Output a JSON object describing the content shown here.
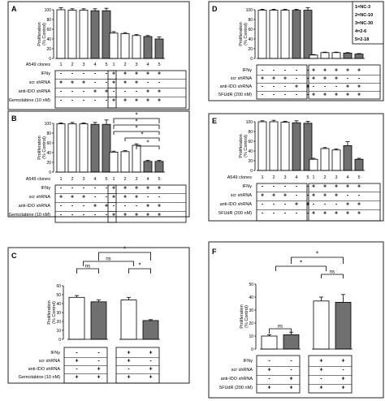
{
  "legend_box": [
    "1=NC-3",
    "2=NC-10",
    "3=NC-30",
    "4=2-6",
    "5=2-18"
  ],
  "y_axis_label": [
    "Proliferation",
    "(% Control)"
  ],
  "clone_row_label": "A549 clones",
  "clone_numbers": [
    "1",
    "2",
    "3",
    "4",
    "5"
  ],
  "ns_label": "ns",
  "star_label": "*",
  "colors": {
    "white_bar": "#ffffff",
    "gray_bar": "#707070",
    "dark_bar": "#4a4a4a",
    "frame": "#222222"
  },
  "chart_data": [
    {
      "panel": "A",
      "type": "bar",
      "ylim": [
        0,
        100
      ],
      "yticks": [
        "0",
        "20",
        "40",
        "60",
        "80",
        "100"
      ],
      "groups": [
        {
          "values": [
            100,
            99,
            99,
            98,
            98
          ],
          "errors": [
            4,
            3,
            3,
            4,
            5
          ]
        },
        {
          "values": [
            52,
            51,
            47,
            45,
            40
          ],
          "errors": [
            3,
            2,
            2,
            2,
            4
          ]
        }
      ],
      "row_labels": [
        "IFNγ",
        "scr shRNA",
        "anti-IDO shRNA",
        "Gemcitabine (10 nM)"
      ],
      "group_table": [
        [
          [
            "-",
            "-",
            "-",
            "-",
            "-"
          ],
          [
            "+",
            "+",
            "+",
            "-",
            "-"
          ],
          [
            "-",
            "-",
            "-",
            "+",
            "+"
          ],
          [
            "-",
            "-",
            "-",
            "-",
            "-"
          ]
        ],
        [
          [
            "+",
            "+",
            "+",
            "+",
            "+"
          ],
          [
            "+",
            "+",
            "+",
            "-",
            "-"
          ],
          [
            "-",
            "-",
            "-",
            "+",
            "+"
          ],
          [
            "+",
            "+",
            "+",
            "+",
            "+"
          ]
        ]
      ]
    },
    {
      "panel": "B",
      "type": "bar",
      "ylim": [
        0,
        100
      ],
      "yticks": [
        "0",
        "20",
        "40",
        "60",
        "80",
        "100"
      ],
      "groups": [
        {
          "values": [
            99,
            99,
            99,
            98,
            98
          ],
          "errors": [
            2,
            3,
            2,
            4,
            9
          ]
        },
        {
          "values": [
            41,
            42,
            55,
            22,
            22
          ],
          "errors": [
            2,
            2,
            3,
            2,
            2
          ]
        }
      ],
      "row_labels": [
        "IFNγ",
        "scr shRNA",
        "anti-IDO shRNA",
        "Gemcitabine (10 nM)"
      ],
      "group_table": [
        [
          [
            "-",
            "-",
            "-",
            "-",
            "-"
          ],
          [
            "+",
            "+",
            "+",
            "-",
            "-"
          ],
          [
            "-",
            "-",
            "-",
            "+",
            "+"
          ],
          [
            "-",
            "-",
            "-",
            "-",
            "-"
          ]
        ],
        [
          [
            "+",
            "+",
            "+",
            "+",
            "+"
          ],
          [
            "+",
            "+",
            "+",
            "-",
            "-"
          ],
          [
            "-",
            "-",
            "-",
            "+",
            "+"
          ],
          [
            "+",
            "+",
            "+",
            "+",
            "+"
          ]
        ]
      ]
    },
    {
      "panel": "C",
      "type": "bar",
      "ylim": [
        0,
        60
      ],
      "yticks": [
        "0",
        "10",
        "20",
        "30",
        "40",
        "50",
        "60"
      ],
      "groups": [
        {
          "values": [
            47,
            42
          ],
          "errors": [
            2,
            2
          ]
        },
        {
          "values": [
            44,
            21
          ],
          "errors": [
            3,
            1
          ]
        }
      ],
      "row_labels": [
        "IFNγ",
        "scr shRNA",
        "anti-IDO shRNA",
        "Gemcitabine (10 nM)"
      ],
      "group_table": [
        [
          [
            "-",
            "-"
          ],
          [
            "+",
            "-"
          ],
          [
            "-",
            "+"
          ],
          [
            "+",
            "+"
          ]
        ],
        [
          [
            "+",
            "+"
          ],
          [
            "+",
            "-"
          ],
          [
            "-",
            "+"
          ],
          [
            "+",
            "+"
          ]
        ]
      ]
    },
    {
      "panel": "D",
      "type": "bar",
      "ylim": [
        0,
        100
      ],
      "yticks": [
        "0",
        "20",
        "40",
        "60",
        "80",
        "100"
      ],
      "groups": [
        {
          "values": [
            99,
            99,
            99,
            99,
            99
          ],
          "errors": [
            2,
            2,
            2,
            2,
            5
          ]
        },
        {
          "values": [
            7,
            12,
            12,
            11,
            9
          ],
          "errors": [
            1,
            1,
            1,
            1,
            1
          ]
        }
      ],
      "row_labels": [
        "IFNγ",
        "scr shRNA",
        "anti-IDO shRNA",
        "5FUdR (200 nM)"
      ],
      "group_table": [
        [
          [
            "-",
            "-",
            "-",
            "-",
            "-"
          ],
          [
            "+",
            "+",
            "+",
            "-",
            "-"
          ],
          [
            "-",
            "-",
            "-",
            "+",
            "+"
          ],
          [
            "-",
            "-",
            "-",
            "-",
            "-"
          ]
        ],
        [
          [
            "+",
            "+",
            "+",
            "+",
            "+"
          ],
          [
            "+",
            "+",
            "+",
            "-",
            "-"
          ],
          [
            "-",
            "-",
            "-",
            "+",
            "+"
          ],
          [
            "+",
            "+",
            "+",
            "+",
            "+"
          ]
        ]
      ]
    },
    {
      "panel": "E",
      "type": "bar",
      "ylim": [
        0,
        100
      ],
      "yticks": [
        "0",
        "20",
        "40",
        "60",
        "80",
        "100"
      ],
      "groups": [
        {
          "values": [
            100,
            100,
            99,
            98,
            97
          ],
          "errors": [
            2,
            3,
            2,
            4,
            4
          ]
        },
        {
          "values": [
            23,
            45,
            42,
            51,
            23
          ],
          "errors": [
            2,
            2,
            2,
            8,
            2
          ]
        }
      ],
      "row_labels": [
        "IFNγ",
        "scr shRNA",
        "anti-IDO shRNA",
        "5FUdR (200 nM)"
      ],
      "group_table": [
        [
          [
            "-",
            "-",
            "-",
            "-",
            "-"
          ],
          [
            "+",
            "+",
            "+",
            "-",
            "-"
          ],
          [
            "-",
            "-",
            "-",
            "+",
            "+"
          ],
          [
            "-",
            "-",
            "-",
            "-",
            "-"
          ]
        ],
        [
          [
            "+",
            "+",
            "+",
            "+",
            "+"
          ],
          [
            "+",
            "+",
            "+",
            "-",
            "-"
          ],
          [
            "-",
            "-",
            "-",
            "+",
            "+"
          ],
          [
            "+",
            "+",
            "+",
            "+",
            "+"
          ]
        ]
      ]
    },
    {
      "panel": "F",
      "type": "bar",
      "ylim": [
        0,
        50
      ],
      "yticks": [
        "0",
        "10",
        "20",
        "30",
        "40",
        "50"
      ],
      "groups": [
        {
          "values": [
            10,
            11
          ],
          "errors": [
            1,
            2
          ]
        },
        {
          "values": [
            37,
            36
          ],
          "errors": [
            3,
            6
          ]
        }
      ],
      "row_labels": [
        "IFNγ",
        "scr shRNA",
        "anti-IDO shRNA",
        "5FUdR (200 nM)"
      ],
      "group_table": [
        [
          [
            "-",
            "-"
          ],
          [
            "+",
            "-"
          ],
          [
            "-",
            "+"
          ],
          [
            "+",
            "+"
          ]
        ],
        [
          [
            "+",
            "+"
          ],
          [
            "+",
            "-"
          ],
          [
            "-",
            "+"
          ],
          [
            "+",
            "+"
          ]
        ]
      ]
    }
  ]
}
